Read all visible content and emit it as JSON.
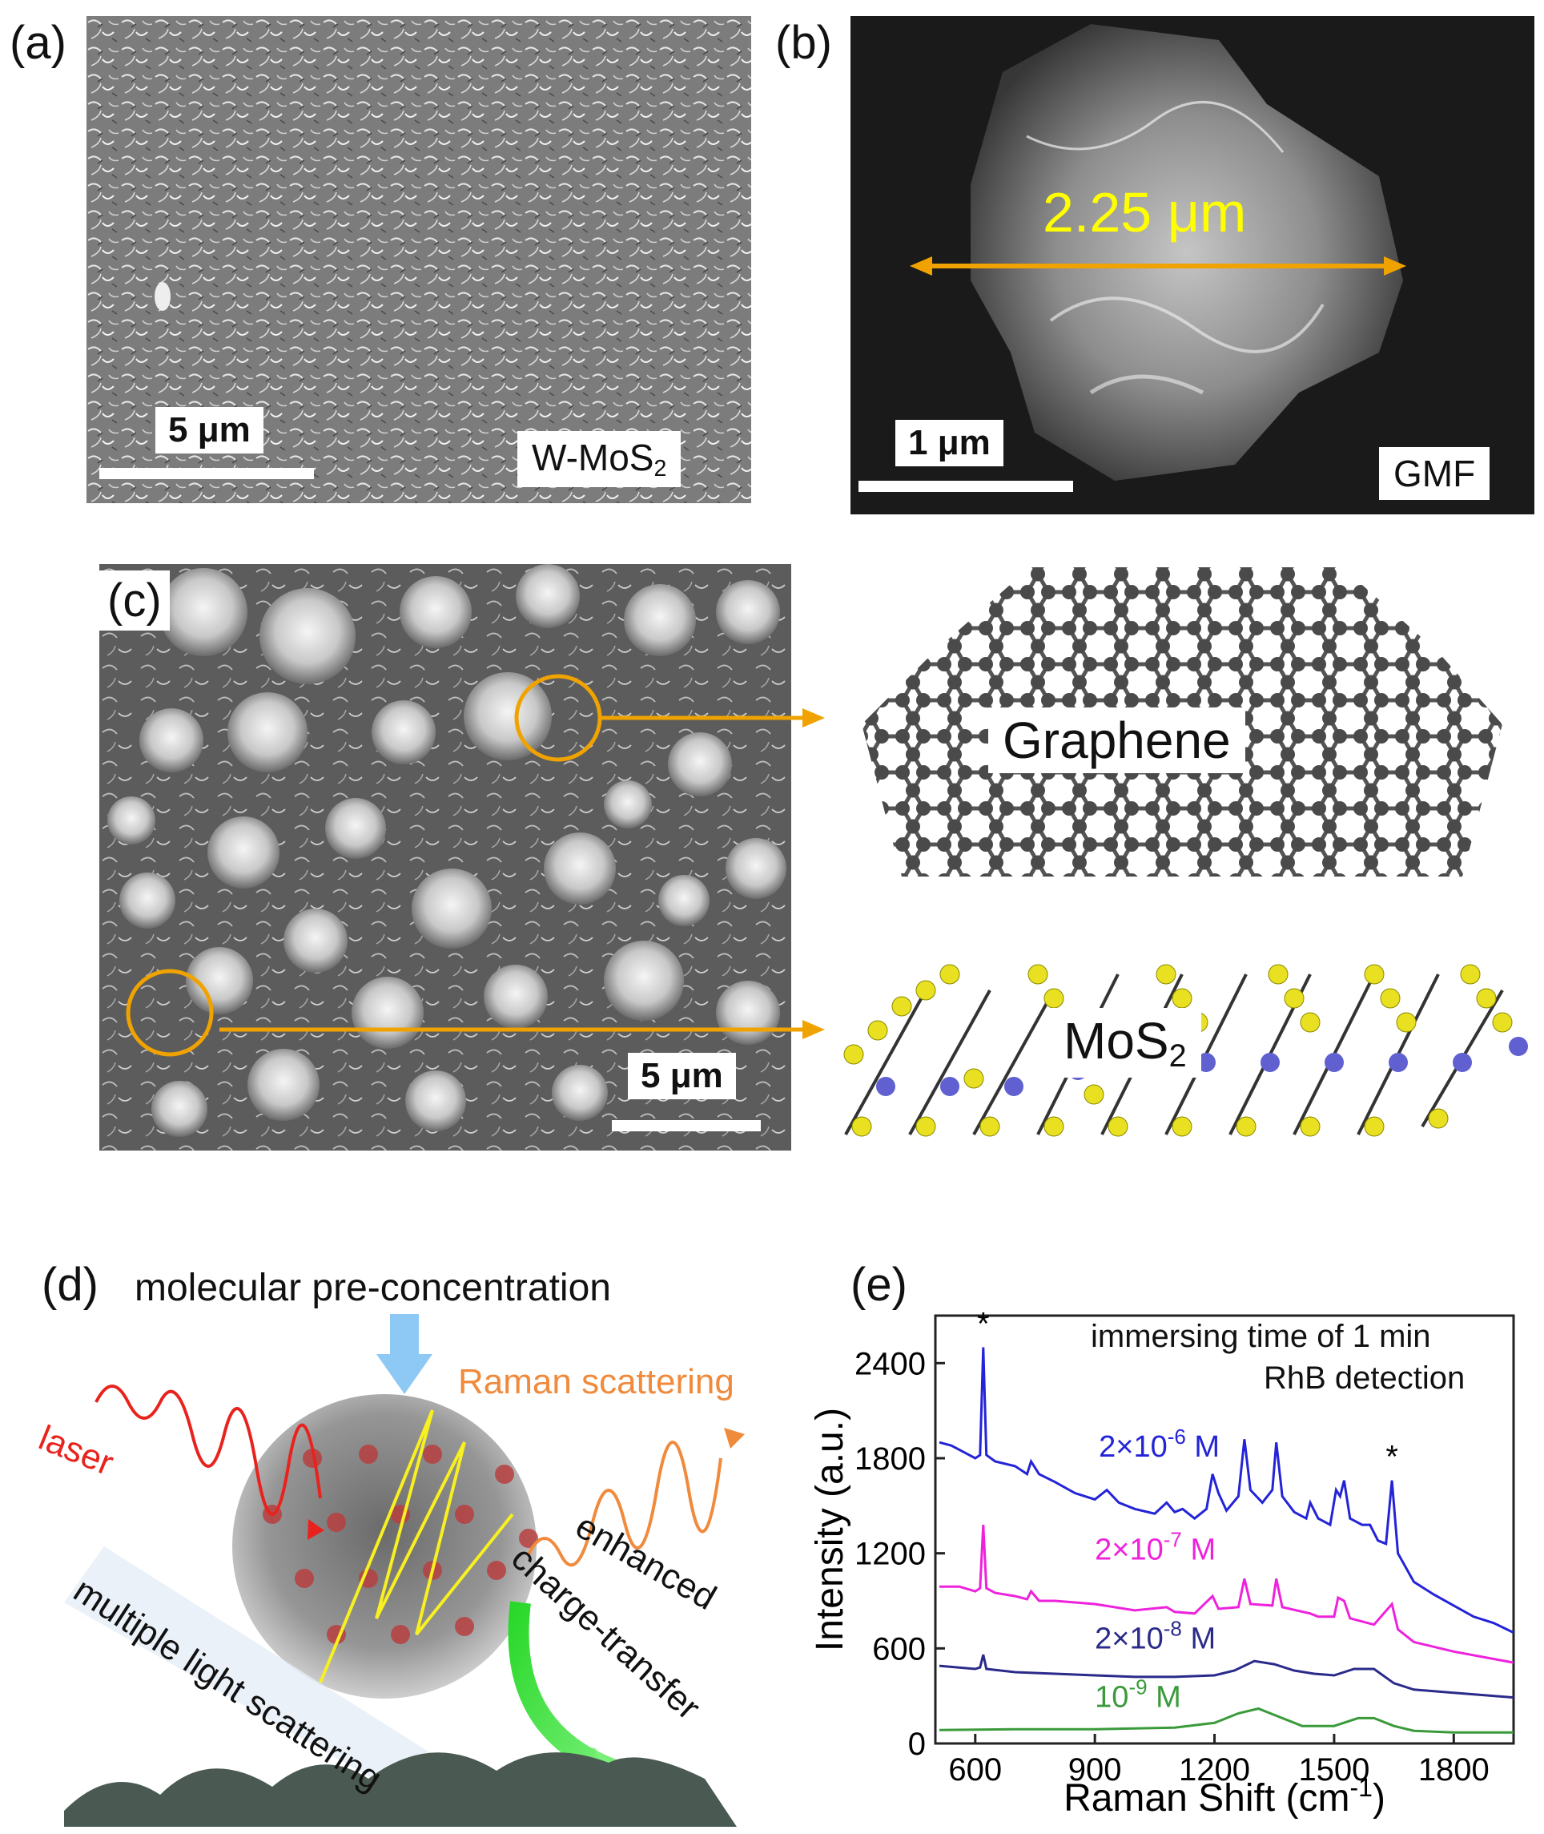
{
  "panels": {
    "a": {
      "label": "(a)",
      "scale_bar": "5 μm",
      "tag_main": "W-MoS",
      "tag_sub": "2"
    },
    "b": {
      "label": "(b)",
      "scale_bar": "1 μm",
      "tag": "GMF",
      "measurement": "2.25 μm"
    },
    "c": {
      "label": "(c)",
      "scale_bar": "5 μm",
      "graphene_label": "Graphene",
      "mos2_main": "MoS",
      "mos2_sub": "2"
    },
    "d": {
      "label": "(d)",
      "title": "molecular pre-concentration",
      "laser": "laser",
      "raman": "Raman scattering",
      "multiple": "multiple light scattering",
      "enhanced": "enhanced",
      "charge": "charge-transfer"
    },
    "e": {
      "label": "(e)",
      "annotation_line1": "immersing time of 1 min",
      "annotation_line2": "RhB detection",
      "star": "*"
    }
  },
  "colors": {
    "orange_arrow": "#f0a300",
    "yellow_measure": "#ffff00",
    "laser_red": "#e8231e",
    "raman_orange": "#f08a3c",
    "blue_series": "#2323d8",
    "magenta_series": "#ee22dd",
    "navy_series": "#2a2a8a",
    "green_series": "#3a9a3a"
  },
  "chart_data": {
    "type": "line",
    "xlabel": "Raman Shift (cm-1)",
    "ylabel": "Intensity (a.u.)",
    "xlim": [
      500,
      1950
    ],
    "ylim": [
      0,
      2700
    ],
    "xticks": [
      600,
      900,
      1200,
      1500,
      1800
    ],
    "yticks": [
      0,
      600,
      1200,
      1800,
      2400
    ],
    "series": [
      {
        "name": "2×10-6 M",
        "label_base": "2×10",
        "label_exp": "-6",
        "label_unit": " M",
        "color": "#2323d8",
        "x": [
          510,
          540,
          570,
          600,
          612,
          620,
          628,
          650,
          700,
          730,
          740,
          760,
          800,
          850,
          900,
          930,
          960,
          1000,
          1050,
          1080,
          1100,
          1120,
          1150,
          1180,
          1195,
          1210,
          1230,
          1260,
          1275,
          1290,
          1320,
          1345,
          1355,
          1370,
          1400,
          1430,
          1440,
          1460,
          1490,
          1505,
          1515,
          1525,
          1540,
          1570,
          1590,
          1610,
          1630,
          1645,
          1660,
          1700,
          1750,
          1800,
          1850,
          1900,
          1950
        ],
        "y": [
          1900,
          1880,
          1840,
          1800,
          1820,
          2500,
          1820,
          1780,
          1750,
          1700,
          1780,
          1700,
          1650,
          1580,
          1540,
          1600,
          1520,
          1480,
          1450,
          1520,
          1460,
          1480,
          1420,
          1480,
          1700,
          1580,
          1470,
          1560,
          1920,
          1600,
          1520,
          1600,
          1900,
          1560,
          1460,
          1420,
          1520,
          1420,
          1380,
          1600,
          1560,
          1660,
          1420,
          1380,
          1380,
          1280,
          1260,
          1660,
          1200,
          1020,
          940,
          870,
          800,
          760,
          700
        ]
      },
      {
        "name": "2×10-7 M",
        "label_base": "2×10",
        "label_exp": "-7",
        "label_unit": " M",
        "color": "#ee22dd",
        "x": [
          510,
          560,
          600,
          612,
          620,
          628,
          650,
          700,
          730,
          740,
          760,
          800,
          900,
          1000,
          1080,
          1100,
          1150,
          1195,
          1210,
          1260,
          1275,
          1290,
          1345,
          1355,
          1370,
          1440,
          1460,
          1500,
          1510,
          1525,
          1540,
          1600,
          1645,
          1660,
          1700,
          1800,
          1950
        ],
        "y": [
          990,
          990,
          960,
          980,
          1380,
          980,
          950,
          930,
          910,
          960,
          900,
          900,
          880,
          840,
          860,
          830,
          820,
          930,
          850,
          860,
          1040,
          880,
          870,
          1040,
          860,
          820,
          800,
          800,
          920,
          900,
          790,
          750,
          880,
          720,
          640,
          580,
          510
        ]
      },
      {
        "name": "2×10-8 M",
        "label_base": "2×10",
        "label_exp": "-8",
        "label_unit": " M",
        "color": "#2a2a8a",
        "x": [
          510,
          600,
          612,
          620,
          628,
          700,
          800,
          900,
          1000,
          1100,
          1200,
          1250,
          1300,
          1350,
          1400,
          1450,
          1500,
          1550,
          1600,
          1650,
          1700,
          1800,
          1950
        ],
        "y": [
          490,
          470,
          480,
          560,
          470,
          450,
          440,
          430,
          420,
          420,
          430,
          460,
          520,
          500,
          460,
          440,
          430,
          470,
          470,
          380,
          340,
          320,
          290
        ]
      },
      {
        "name": "10-9 M",
        "label_base": "10",
        "label_exp": "-9",
        "label_unit": " M",
        "color": "#3a9a3a",
        "x": [
          510,
          700,
          900,
          1100,
          1200,
          1260,
          1310,
          1360,
          1420,
          1500,
          1560,
          1600,
          1650,
          1700,
          1800,
          1950
        ],
        "y": [
          85,
          90,
          90,
          100,
          130,
          190,
          220,
          170,
          110,
          110,
          160,
          160,
          110,
          80,
          70,
          70
        ]
      }
    ],
    "star_marks": [
      {
        "x": 620,
        "y": 2500
      },
      {
        "x": 1645,
        "y": 1660
      }
    ]
  }
}
